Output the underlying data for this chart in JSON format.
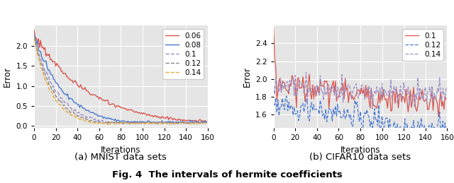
{
  "mnist": {
    "n_iter": 160,
    "series": [
      {
        "label": "0.06",
        "color": "#d9534a",
        "linestyle": "-",
        "lw": 1.0,
        "seed": 1,
        "start": 2.3,
        "decay": 0.02,
        "noise_scale": 0.045,
        "floor": 0.13
      },
      {
        "label": "0.08",
        "color": "#4878cf",
        "linestyle": "-",
        "lw": 1.0,
        "seed": 2,
        "start": 2.28,
        "decay": 0.036,
        "noise_scale": 0.038,
        "floor": 0.1
      },
      {
        "label": "0.1",
        "color": "#9b8dc4",
        "linestyle": "--",
        "lw": 1.0,
        "seed": 3,
        "start": 2.22,
        "decay": 0.046,
        "noise_scale": 0.035,
        "floor": 0.09
      },
      {
        "label": "0.12",
        "color": "#888888",
        "linestyle": "--",
        "lw": 1.0,
        "seed": 4,
        "start": 2.2,
        "decay": 0.053,
        "noise_scale": 0.033,
        "floor": 0.08
      },
      {
        "label": "0.14",
        "color": "#e8a830",
        "linestyle": "--",
        "lw": 1.0,
        "seed": 5,
        "start": 2.18,
        "decay": 0.06,
        "noise_scale": 0.032,
        "floor": 0.07
      }
    ],
    "xlabel": "Iterations",
    "ylabel": "Error",
    "xlim": [
      0,
      160
    ],
    "ylim": [
      -0.05,
      2.5
    ],
    "yticks": [
      0.0,
      0.5,
      1.0,
      1.5,
      2.0
    ],
    "xticks": [
      0,
      20,
      40,
      60,
      80,
      100,
      120,
      140,
      160
    ]
  },
  "cifar": {
    "n_iter": 160,
    "series": [
      {
        "label": "0.1",
        "color": "#d9534a",
        "linestyle": "-",
        "lw": 0.9,
        "seed": 20,
        "base": 1.95,
        "trend": -0.0015,
        "noise": 0.075,
        "spike_val": 2.58
      },
      {
        "label": "0.12",
        "color": "#4878cf",
        "linestyle": "--",
        "lw": 0.9,
        "seed": 21,
        "base": 1.72,
        "trend": -0.002,
        "noise": 0.07,
        "spike_val": 0.0
      },
      {
        "label": "0.14",
        "color": "#9b8dc4",
        "linestyle": "--",
        "lw": 0.9,
        "seed": 22,
        "base": 1.93,
        "trend": -0.0008,
        "noise": 0.068,
        "spike_val": 0.0
      }
    ],
    "xlabel": "Iterations",
    "ylabel": "Error",
    "xlim": [
      0,
      160
    ],
    "ylim": [
      1.45,
      2.6
    ],
    "yticks": [
      1.6,
      1.8,
      2.0,
      2.2,
      2.4
    ],
    "xticks": [
      0,
      20,
      40,
      60,
      80,
      100,
      120,
      140,
      160
    ]
  },
  "bg_color": "#e5e5e5",
  "grid_color": "#ffffff",
  "legend_fontsize": 7.5,
  "axis_label_fontsize": 8.5,
  "tick_fontsize": 7.5,
  "caption_fontsize": 9.5
}
